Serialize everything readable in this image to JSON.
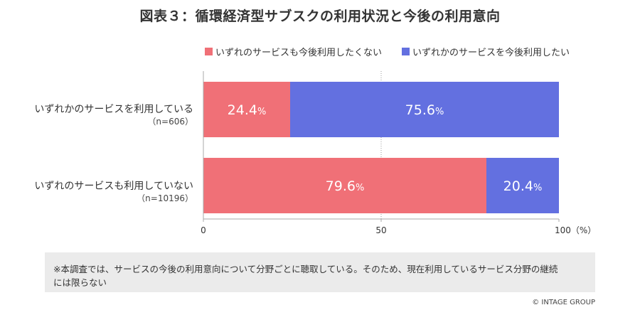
{
  "chart_data": {
    "type": "bar",
    "orientation": "horizontal",
    "stacked": true,
    "title": "図表３：循環経済型サブスクの利用状況と今後の利用意向",
    "categories": [
      {
        "name": "いずれかのサービスを利用している",
        "n": "（n=606）"
      },
      {
        "name": "いずれのサービスも利用していない",
        "n": "（n=10196）"
      }
    ],
    "series": [
      {
        "name": "いずれのサービスも今後利用したくない",
        "color": "#f07077",
        "values": [
          24.4,
          79.6
        ]
      },
      {
        "name": "いずれかのサービスを今後利用したい",
        "color": "#6370e0",
        "values": [
          75.6,
          20.4
        ]
      }
    ],
    "value_suffix": "%",
    "xlim": [
      0,
      100
    ],
    "xticks": [
      0,
      50,
      100
    ],
    "xtick_labels": [
      "0",
      "50",
      "100（%）"
    ],
    "legend_position": "top",
    "grid": "dotted-at-50"
  },
  "note": {
    "line1": "※本調査では、サービスの今後の利用意向について分野ごとに聴取している。そのため、現在利用しているサービス分野の継続",
    "line2": "には限らない"
  },
  "copyright": "© INTAGE GROUP"
}
